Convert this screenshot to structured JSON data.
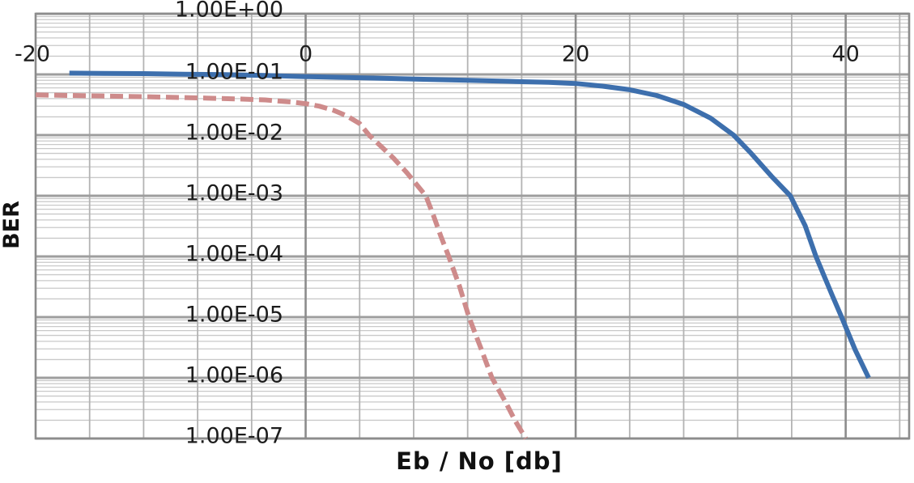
{
  "figure": {
    "x_axis_title": "Eb / No [db]",
    "y_axis_title": "BER"
  },
  "colors": {
    "series_solid_blue": "#3D6FAD",
    "series_dashed_pink": "#CE8B8B",
    "grid_major": "#9E9E9E",
    "grid_minor": "#C9C9C9",
    "grid_minor_vertical": "#B3B3B3",
    "grid_major_vertical": "#8C8C8C",
    "axis_border": "#8C8C8C",
    "tick_text": "#1C1C1C"
  },
  "chart_data": {
    "type": "line",
    "title": "",
    "xlabel": "Eb / No [db]",
    "ylabel": "BER",
    "x_range": [
      -20,
      44.7
    ],
    "x_minor_step": 4,
    "x_major_ticks": [
      {
        "value": -20,
        "label": "-20"
      },
      {
        "value": 0,
        "label": "0"
      },
      {
        "value": 20,
        "label": "20"
      },
      {
        "value": 40,
        "label": "40"
      }
    ],
    "y_scale": "log",
    "y_range": [
      1e-07,
      1
    ],
    "y_ticks": [
      {
        "value": 1,
        "label": "1.00E+00"
      },
      {
        "value": 0.1,
        "label": "1.00E-01"
      },
      {
        "value": 0.01,
        "label": "1.00E-02"
      },
      {
        "value": 0.001,
        "label": "1.00E-03"
      },
      {
        "value": 0.0001,
        "label": "1.00E-04"
      },
      {
        "value": 1e-05,
        "label": "1.00E-05"
      },
      {
        "value": 1e-06,
        "label": "1.00E-06"
      },
      {
        "value": 1e-07,
        "label": "1.00E-07"
      }
    ],
    "grid": true,
    "legend_position": "none",
    "series": [
      {
        "name": "solid-blue-curve",
        "style": "solid",
        "color": "#3D6FAD",
        "points": [
          [
            -17.5,
            0.105
          ],
          [
            -15,
            0.104
          ],
          [
            -12,
            0.103
          ],
          [
            -9,
            0.101
          ],
          [
            -6,
            0.099
          ],
          [
            -3,
            0.096
          ],
          [
            0,
            0.092
          ],
          [
            3,
            0.089
          ],
          [
            6,
            0.086
          ],
          [
            9,
            0.083
          ],
          [
            12,
            0.08
          ],
          [
            15,
            0.077
          ],
          [
            18,
            0.074
          ],
          [
            20,
            0.071
          ],
          [
            22,
            0.064
          ],
          [
            24,
            0.056
          ],
          [
            26,
            0.045
          ],
          [
            28,
            0.032
          ],
          [
            30,
            0.019
          ],
          [
            31.7,
            0.01
          ],
          [
            33,
            0.005
          ],
          [
            34.5,
            0.0021
          ],
          [
            35.9,
            0.001
          ],
          [
            37,
            0.00032
          ],
          [
            37.8,
            0.0001
          ],
          [
            39,
            2.3e-05
          ],
          [
            39.7,
            1e-05
          ],
          [
            40.7,
            2.9e-06
          ],
          [
            41.7,
            1e-06
          ]
        ]
      },
      {
        "name": "dashed-pink-curve",
        "style": "dashed",
        "color": "#CE8B8B",
        "points": [
          [
            -20,
            0.046
          ],
          [
            -16,
            0.0445
          ],
          [
            -12,
            0.043
          ],
          [
            -8,
            0.041
          ],
          [
            -5,
            0.0395
          ],
          [
            -3,
            0.038
          ],
          [
            -1,
            0.035
          ],
          [
            0,
            0.033
          ],
          [
            1,
            0.03
          ],
          [
            2,
            0.026
          ],
          [
            3,
            0.021
          ],
          [
            4,
            0.0155
          ],
          [
            4.7,
            0.01
          ],
          [
            5.5,
            0.0068
          ],
          [
            6.5,
            0.0042
          ],
          [
            7.5,
            0.0024
          ],
          [
            8.9,
            0.001
          ],
          [
            9.5,
            0.00045
          ],
          [
            10,
            0.00022
          ],
          [
            10.6,
            0.0001
          ],
          [
            11.4,
            3.2e-05
          ],
          [
            12.1,
            1e-05
          ],
          [
            13,
            3e-06
          ],
          [
            13.8,
            1e-06
          ],
          [
            14.8,
            4e-07
          ],
          [
            15.5,
            2e-07
          ],
          [
            16.3,
            1e-07
          ]
        ]
      }
    ]
  }
}
